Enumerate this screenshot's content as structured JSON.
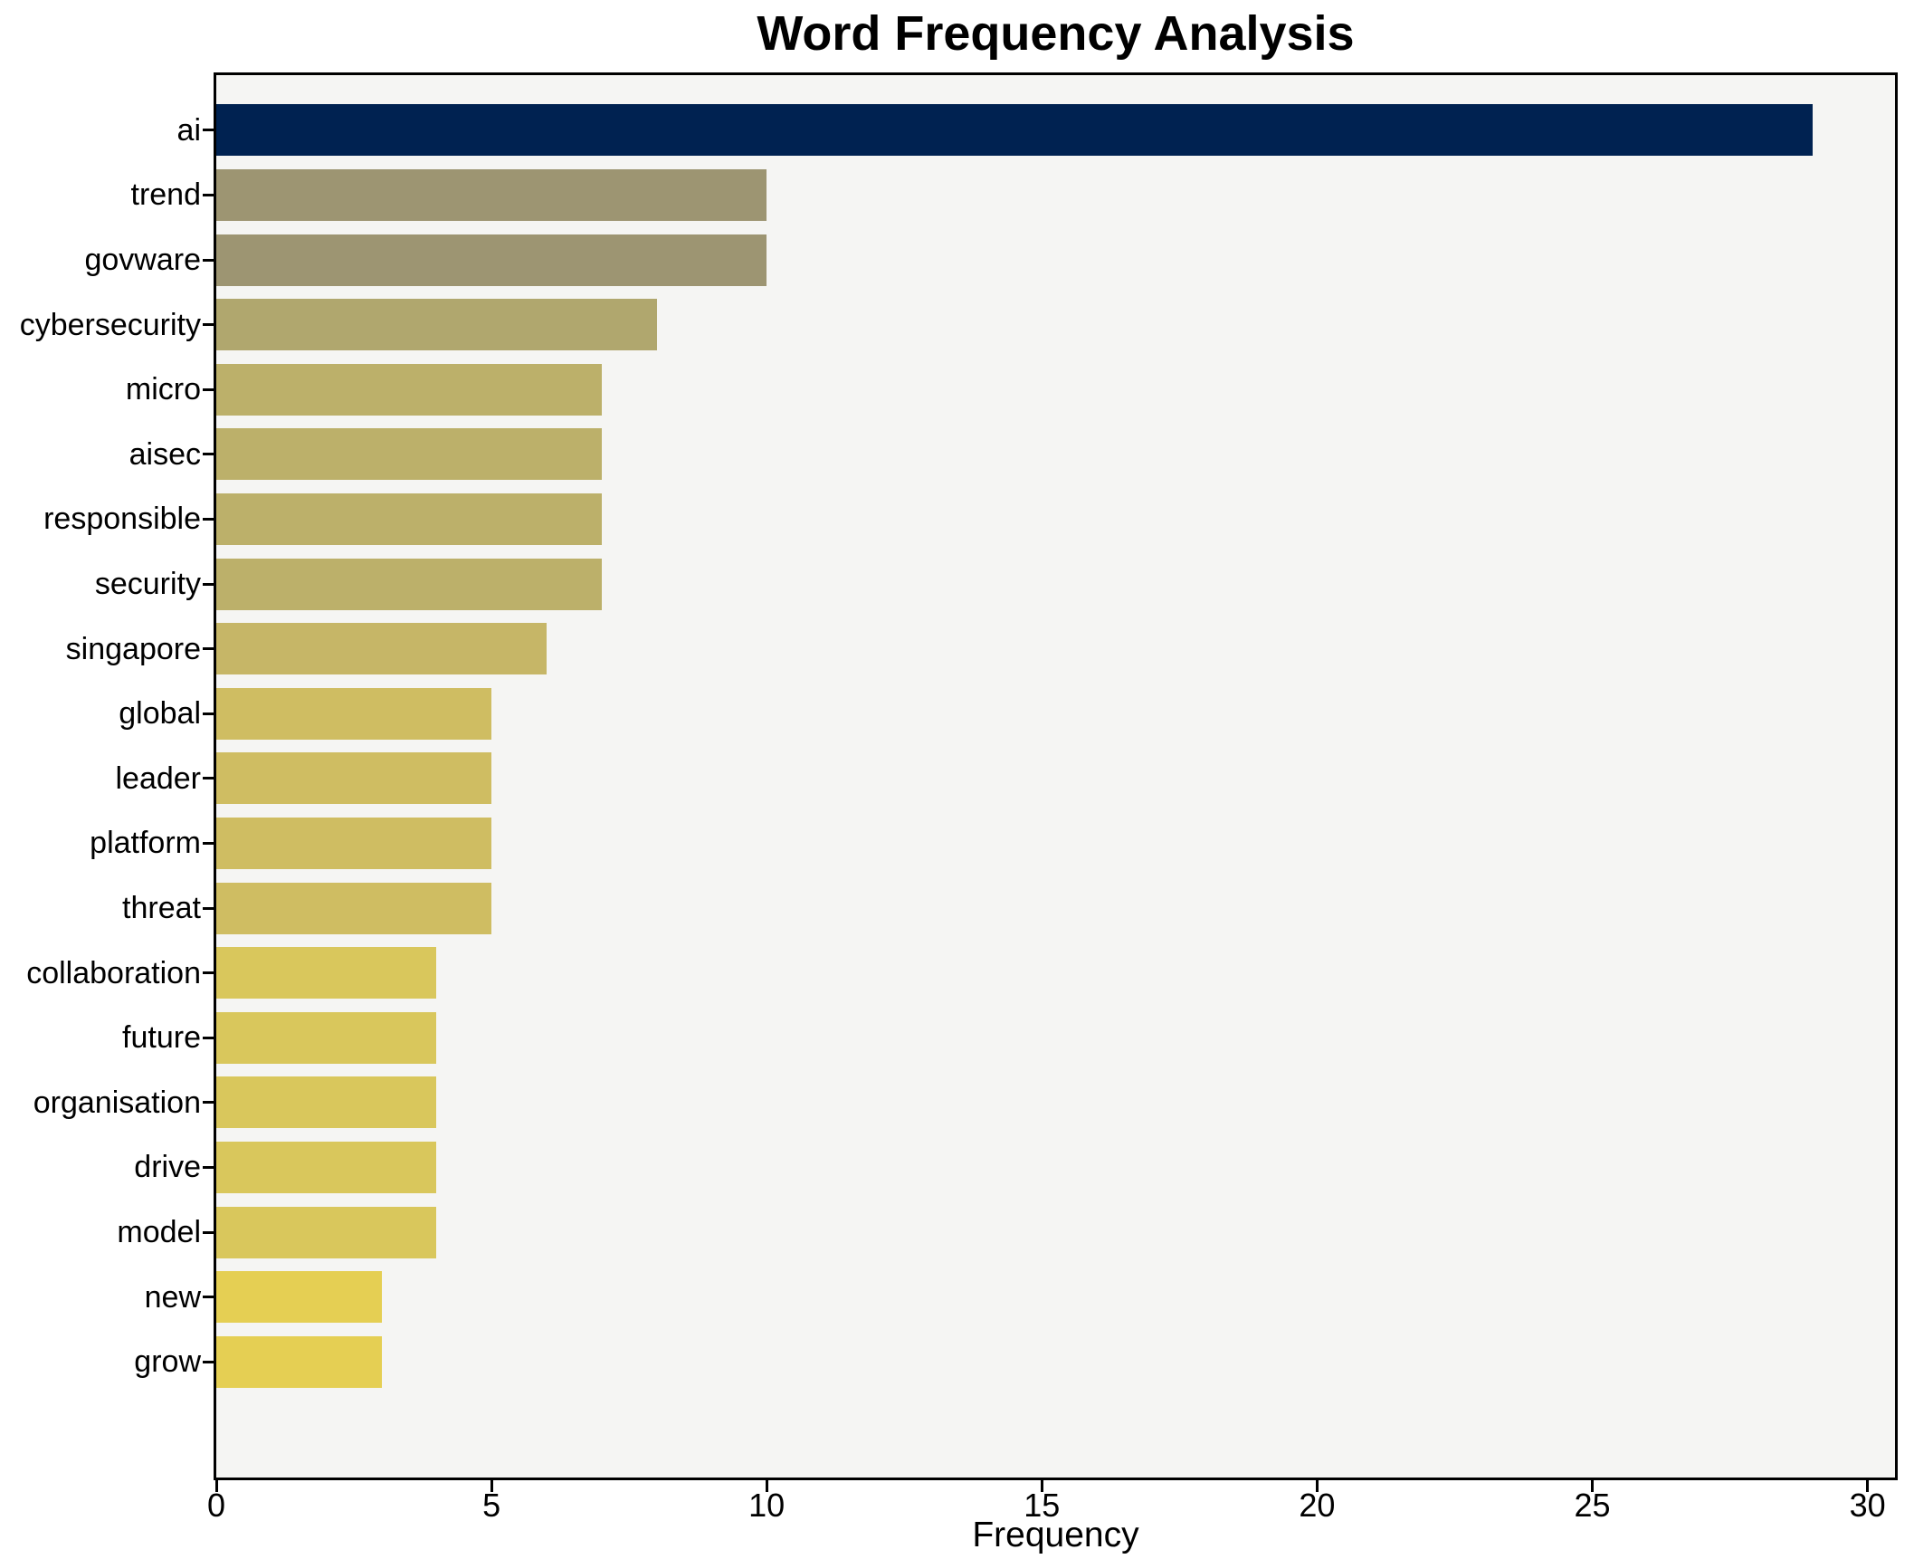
{
  "title": "Word Frequency Analysis",
  "chart_data": {
    "type": "bar",
    "orientation": "horizontal",
    "title": "Word Frequency Analysis",
    "xlabel": "Frequency",
    "ylabel": "",
    "categories": [
      "ai",
      "trend",
      "govware",
      "cybersecurity",
      "micro",
      "aisec",
      "responsible",
      "security",
      "singapore",
      "global",
      "leader",
      "platform",
      "threat",
      "collaboration",
      "future",
      "organisation",
      "drive",
      "model",
      "new",
      "grow"
    ],
    "values": [
      29,
      10,
      10,
      8,
      7,
      7,
      7,
      7,
      6,
      5,
      5,
      5,
      5,
      4,
      4,
      4,
      4,
      4,
      3,
      3
    ],
    "bar_colors": [
      "#002251",
      "#9d9572",
      "#9d9572",
      "#b0a76e",
      "#bcb06a",
      "#bcb06a",
      "#bcb06a",
      "#bcb06a",
      "#c6b667",
      "#cfbd62",
      "#cfbd62",
      "#cfbd62",
      "#cfbd62",
      "#d9c75c",
      "#d9c75c",
      "#d9c75c",
      "#d9c75c",
      "#d9c75c",
      "#e5cf53",
      "#e5cf53"
    ],
    "x_ticks": [
      0,
      5,
      10,
      15,
      20,
      25,
      30
    ],
    "xlim": [
      0,
      30.5
    ],
    "grid": false,
    "legend": null,
    "plot_background": "#f5f5f3",
    "figure_background": "#ffffff",
    "spine_color": "#000000",
    "text_color": "#000000"
  }
}
